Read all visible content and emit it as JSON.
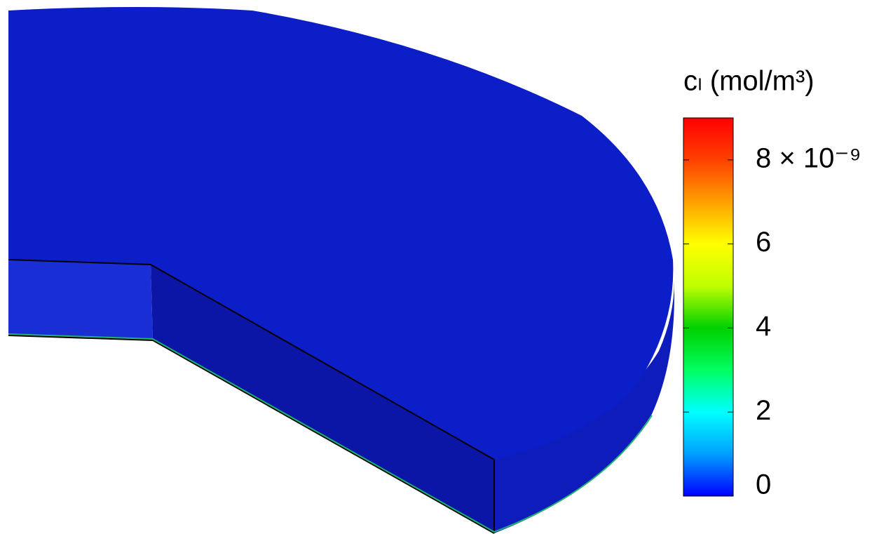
{
  "chart_data": {
    "type": "contour",
    "colorbar_title": "cₗ (mol/m³)",
    "clim": [
      0,
      9e-09
    ],
    "cticks": [
      0,
      {
        "value": 2e-09,
        "label": "2"
      },
      {
        "value": 4e-09,
        "label": "4"
      },
      {
        "value": 6e-09,
        "label": "6"
      },
      {
        "value": 8e-09,
        "label": "8 × 10⁻⁹"
      }
    ],
    "colormap": [
      "#0000ff",
      "#00a0ff",
      "#00ffff",
      "#00ff60",
      "#00d000",
      "#c0ff00",
      "#ffff00",
      "#ffa000",
      "#ff4000",
      "#ff0000"
    ]
  }
}
